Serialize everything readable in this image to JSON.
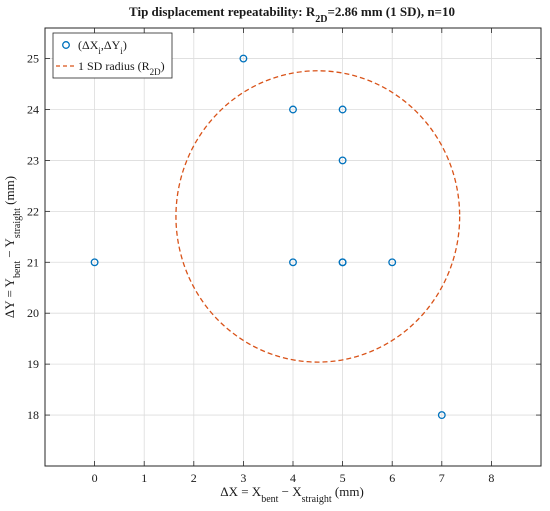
{
  "colors": {
    "points": "#0072BD",
    "circle": "#D95319",
    "grid": "#dcdcdc",
    "axis": "#262626"
  },
  "chart_data": {
    "type": "scatter",
    "title": {
      "prefix": "Tip displacement repeatability: R",
      "sub": "2D",
      "suffix": "=2.86 mm (1 SD), n=10"
    },
    "xlabel": {
      "lead": "ΔX = X",
      "sub1": "bent",
      "mid": " − X",
      "sub2": "straight",
      "tail": " (mm)"
    },
    "ylabel": {
      "lead": "ΔY = Y",
      "sub1": "bent",
      "mid": " − Y",
      "sub2": "straight",
      "tail": " (mm)"
    },
    "xlim": [
      -1,
      9
    ],
    "ylim": [
      17,
      25.6
    ],
    "xticks": [
      0,
      1,
      2,
      3,
      4,
      5,
      6,
      7,
      8
    ],
    "yticks": [
      18,
      19,
      20,
      21,
      22,
      23,
      24,
      25
    ],
    "grid": true,
    "legend_position": "top-left",
    "legend": [
      {
        "kind": "marker",
        "lead": "(ΔX",
        "s1": "i",
        "mid": ",ΔY",
        "s2": "i",
        "tail": ")"
      },
      {
        "kind": "dashed-line",
        "lead": "1 SD radius (R",
        "s1": "2D",
        "tail": ")"
      }
    ],
    "series": [
      {
        "marker": "circle-open",
        "x": [
          0,
          3,
          4,
          5,
          5,
          4,
          5,
          6,
          7,
          5
        ],
        "y": [
          21,
          25,
          24,
          24,
          23,
          21,
          21,
          21,
          18,
          21
        ]
      }
    ],
    "circle": {
      "center": [
        4.5,
        21.9
      ],
      "radius": 2.86,
      "style": "dashed"
    }
  }
}
